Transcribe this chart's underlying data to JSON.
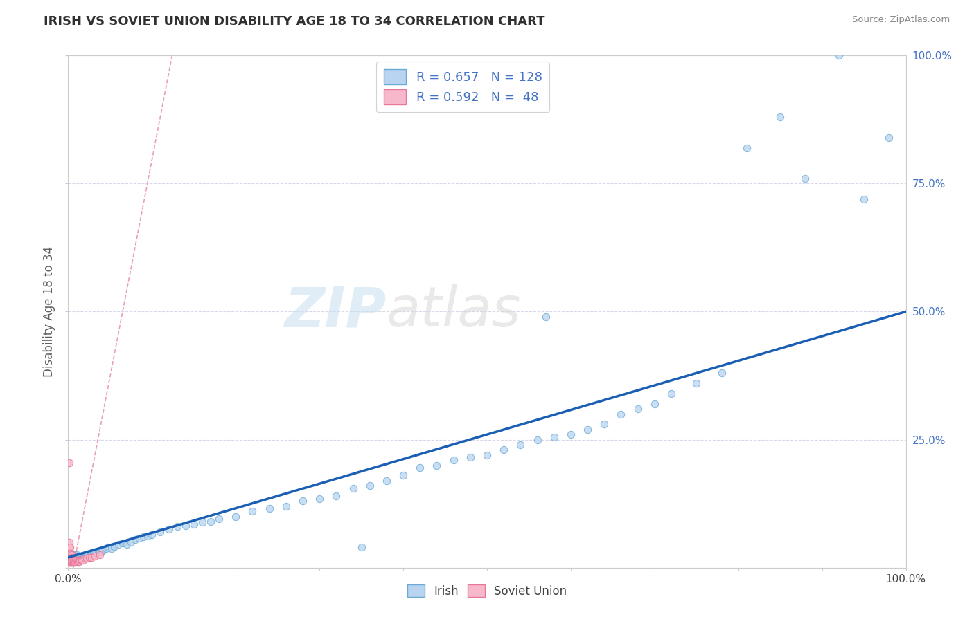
{
  "title": "IRISH VS SOVIET UNION DISABILITY AGE 18 TO 34 CORRELATION CHART",
  "source_text": "Source: ZipAtlas.com",
  "ylabel": "Disability Age 18 to 34",
  "xlim": [
    0,
    1.0
  ],
  "ylim": [
    0,
    1.0
  ],
  "watermark_part1": "ZIP",
  "watermark_part2": "atlas",
  "irish_color": "#b8d4f0",
  "irish_edge_color": "#6aaad4",
  "soviet_color": "#f8b8cc",
  "soviet_edge_color": "#e87898",
  "trend_line_color": "#1a5fb4",
  "trend_line_soviet_color": "#e87898",
  "irish_R": 0.657,
  "irish_N": 128,
  "soviet_R": 0.592,
  "soviet_N": 48,
  "dashed_line_color": "#e8a0b8",
  "background_color": "#ffffff",
  "title_color": "#303030",
  "legend_text_color": "#4472c4",
  "axis_label_color": "#606060",
  "grid_color": "#d8d8e8",
  "irish_x": [
    0.001,
    0.001,
    0.001,
    0.001,
    0.001,
    0.002,
    0.002,
    0.002,
    0.002,
    0.002,
    0.003,
    0.003,
    0.003,
    0.003,
    0.003,
    0.004,
    0.004,
    0.004,
    0.004,
    0.004,
    0.005,
    0.005,
    0.005,
    0.005,
    0.006,
    0.006,
    0.006,
    0.006,
    0.007,
    0.007,
    0.007,
    0.008,
    0.008,
    0.008,
    0.009,
    0.009,
    0.01,
    0.01,
    0.01,
    0.011,
    0.011,
    0.012,
    0.012,
    0.013,
    0.013,
    0.014,
    0.014,
    0.015,
    0.015,
    0.016,
    0.016,
    0.017,
    0.018,
    0.019,
    0.02,
    0.021,
    0.022,
    0.023,
    0.024,
    0.025,
    0.026,
    0.027,
    0.028,
    0.03,
    0.032,
    0.034,
    0.036,
    0.038,
    0.04,
    0.042,
    0.045,
    0.048,
    0.052,
    0.055,
    0.06,
    0.065,
    0.07,
    0.075,
    0.08,
    0.085,
    0.09,
    0.095,
    0.1,
    0.11,
    0.12,
    0.13,
    0.14,
    0.15,
    0.16,
    0.17,
    0.18,
    0.2,
    0.22,
    0.24,
    0.26,
    0.28,
    0.3,
    0.32,
    0.34,
    0.36,
    0.38,
    0.4,
    0.42,
    0.44,
    0.46,
    0.48,
    0.5,
    0.52,
    0.54,
    0.56,
    0.58,
    0.6,
    0.62,
    0.64,
    0.66,
    0.68,
    0.7,
    0.72,
    0.75,
    0.78,
    0.81,
    0.85,
    0.88,
    0.92,
    0.95,
    0.98,
    0.57,
    0.35
  ],
  "irish_y": [
    0.015,
    0.02,
    0.025,
    0.018,
    0.022,
    0.015,
    0.018,
    0.02,
    0.025,
    0.012,
    0.015,
    0.018,
    0.02,
    0.022,
    0.025,
    0.015,
    0.018,
    0.02,
    0.012,
    0.025,
    0.015,
    0.018,
    0.022,
    0.025,
    0.015,
    0.018,
    0.02,
    0.025,
    0.015,
    0.018,
    0.022,
    0.015,
    0.018,
    0.025,
    0.015,
    0.022,
    0.015,
    0.018,
    0.025,
    0.015,
    0.022,
    0.015,
    0.02,
    0.015,
    0.022,
    0.015,
    0.018,
    0.015,
    0.02,
    0.015,
    0.018,
    0.02,
    0.018,
    0.02,
    0.02,
    0.022,
    0.02,
    0.022,
    0.025,
    0.022,
    0.025,
    0.025,
    0.028,
    0.03,
    0.028,
    0.03,
    0.032,
    0.03,
    0.032,
    0.035,
    0.038,
    0.04,
    0.038,
    0.042,
    0.045,
    0.048,
    0.045,
    0.05,
    0.055,
    0.058,
    0.06,
    0.062,
    0.065,
    0.07,
    0.075,
    0.08,
    0.082,
    0.085,
    0.088,
    0.09,
    0.095,
    0.1,
    0.11,
    0.115,
    0.12,
    0.13,
    0.135,
    0.14,
    0.155,
    0.16,
    0.17,
    0.18,
    0.195,
    0.2,
    0.21,
    0.215,
    0.22,
    0.23,
    0.24,
    0.25,
    0.255,
    0.26,
    0.27,
    0.28,
    0.3,
    0.31,
    0.32,
    0.34,
    0.36,
    0.38,
    0.82,
    0.88,
    0.76,
    1.0,
    0.72,
    0.84,
    0.49,
    0.04
  ],
  "soviet_x": [
    0.001,
    0.001,
    0.001,
    0.001,
    0.001,
    0.001,
    0.001,
    0.001,
    0.001,
    0.002,
    0.002,
    0.002,
    0.002,
    0.002,
    0.002,
    0.002,
    0.003,
    0.003,
    0.003,
    0.003,
    0.003,
    0.004,
    0.004,
    0.004,
    0.004,
    0.005,
    0.005,
    0.005,
    0.006,
    0.006,
    0.007,
    0.007,
    0.008,
    0.009,
    0.01,
    0.011,
    0.012,
    0.013,
    0.014,
    0.015,
    0.016,
    0.018,
    0.02,
    0.022,
    0.025,
    0.028,
    0.032,
    0.038
  ],
  "soviet_y": [
    0.012,
    0.015,
    0.018,
    0.02,
    0.025,
    0.03,
    0.035,
    0.04,
    0.05,
    0.012,
    0.015,
    0.018,
    0.02,
    0.025,
    0.03,
    0.04,
    0.012,
    0.015,
    0.018,
    0.022,
    0.028,
    0.012,
    0.015,
    0.02,
    0.025,
    0.012,
    0.015,
    0.02,
    0.012,
    0.018,
    0.012,
    0.015,
    0.012,
    0.015,
    0.015,
    0.012,
    0.012,
    0.012,
    0.015,
    0.015,
    0.015,
    0.015,
    0.018,
    0.018,
    0.02,
    0.02,
    0.022,
    0.025
  ],
  "soviet_outlier_x": [
    0.001
  ],
  "soviet_outlier_y": [
    0.205
  ]
}
